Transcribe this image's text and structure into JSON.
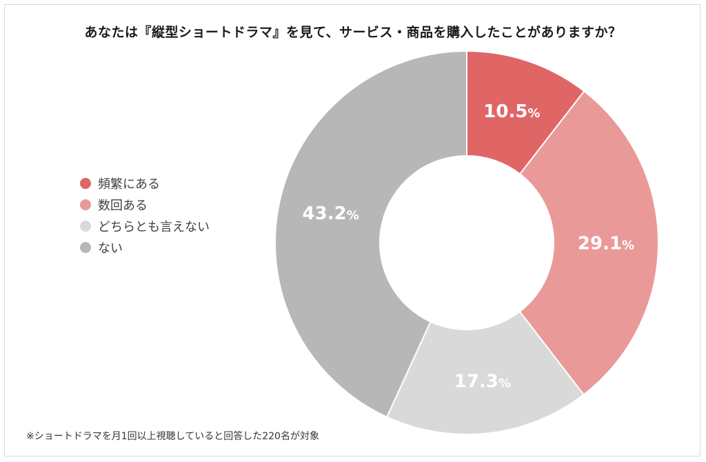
{
  "chart_data": {
    "type": "pie",
    "donut": true,
    "title": "あなたは『縦型ショートドラマ』を見て、サービス・商品を購入したことがありますか？",
    "categories": [
      "頻繁にある",
      "数回ある",
      "どちらとも言えない",
      "ない"
    ],
    "values": [
      10.5,
      29.1,
      17.3,
      43.2
    ],
    "value_labels": [
      "10.5",
      "29.1",
      "17.3",
      "43.2"
    ],
    "unit": "%",
    "colors": [
      "#e06666",
      "#ea9999",
      "#d9d9d9",
      "#b7b7b7"
    ],
    "label_color": "#ffffff",
    "legend_position": "left",
    "start": "top, clockwise"
  },
  "note": "※ショートドラマを月1回以上視聴していると回答した220名が対象"
}
